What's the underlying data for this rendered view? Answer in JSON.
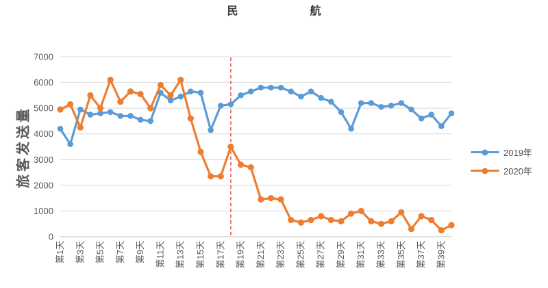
{
  "title": "民航",
  "chart_data": {
    "type": "line",
    "title": "民航",
    "ylabel": "旅客发送量",
    "ylim": [
      0,
      7000
    ],
    "y_ticks": [
      0,
      1000,
      2000,
      3000,
      4000,
      5000,
      6000,
      7000
    ],
    "grid": "horizontal",
    "legend_position": "right",
    "x_tick_labels": [
      "第1天",
      "第3天",
      "第5天",
      "第7天",
      "第9天",
      "第11天",
      "第13天",
      "第15天",
      "第17天",
      "第19天",
      "第21天",
      "第23天",
      "第25天",
      "第27天",
      "第29天",
      "第31天",
      "第33天",
      "第35天",
      "第37天",
      "第39天"
    ],
    "x_days": 40,
    "series": [
      {
        "name": "2019年",
        "color": "#5B9BD5",
        "values": [
          4200,
          3600,
          4950,
          4750,
          4800,
          4850,
          4700,
          4700,
          4550,
          4500,
          5600,
          5300,
          5450,
          5650,
          5600,
          4150,
          5100,
          5150,
          5500,
          5650,
          5800,
          5800,
          5800,
          5650,
          5450,
          5650,
          5400,
          5250,
          4850,
          4200,
          5200,
          5200,
          5050,
          5100,
          5200,
          4950,
          4600,
          4750,
          4300,
          4800
        ]
      },
      {
        "name": "2020年",
        "color": "#ED7D31",
        "values": [
          4950,
          5150,
          4250,
          5500,
          5000,
          6100,
          5250,
          5650,
          5550,
          5000,
          5900,
          5500,
          6100,
          4600,
          3300,
          2350,
          2350,
          3500,
          2800,
          2700,
          1450,
          1500,
          1450,
          650,
          550,
          650,
          800,
          650,
          600,
          900,
          1000,
          600,
          500,
          600,
          950,
          300,
          800,
          650,
          250,
          450
        ]
      }
    ],
    "annotation_vline": {
      "day": 18,
      "color": "#E4625C",
      "style": "dashed"
    },
    "colors": {
      "gridline": "#d9d9d9",
      "axis_line": "#bfbfbf",
      "axis_text": "#595959",
      "title_text": "#3b3b3b"
    }
  }
}
